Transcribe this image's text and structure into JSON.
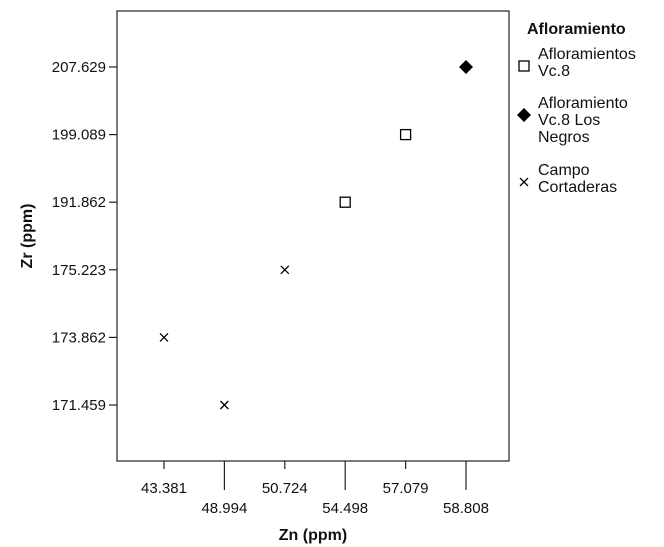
{
  "chart_data": {
    "type": "scatter",
    "xlabel": "Zn (ppm)",
    "ylabel": "Zr (ppm)",
    "x_scale": "categorical",
    "y_scale": "categorical",
    "categories_x": [
      "43.381",
      "48.994",
      "50.724",
      "54.498",
      "57.079",
      "58.808"
    ],
    "categories_y": [
      "171.459",
      "173.862",
      "175.223",
      "191.862",
      "199.089",
      "207.629"
    ],
    "grid": false,
    "legend": {
      "title": "Afloramiento",
      "placement": "right"
    },
    "series": [
      {
        "name": "Afloramientos Vc.8",
        "name_lines": [
          "Afloramientos",
          "Vc.8"
        ],
        "marker": "open-square",
        "points": [
          {
            "x": "54.498",
            "y": "191.862"
          },
          {
            "x": "57.079",
            "y": "199.089"
          }
        ]
      },
      {
        "name": "Afloramiento Vc.8 Los Negros",
        "name_lines": [
          "Afloramiento",
          "Vc.8 Los",
          "Negros"
        ],
        "marker": "filled-diamond",
        "points": [
          {
            "x": "58.808",
            "y": "207.629"
          }
        ]
      },
      {
        "name": "Campo Cortaderas",
        "name_lines": [
          "Campo",
          "Cortaderas"
        ],
        "marker": "cross",
        "points": [
          {
            "x": "43.381",
            "y": "173.862"
          },
          {
            "x": "48.994",
            "y": "171.459"
          },
          {
            "x": "50.724",
            "y": "175.223"
          }
        ]
      }
    ]
  }
}
